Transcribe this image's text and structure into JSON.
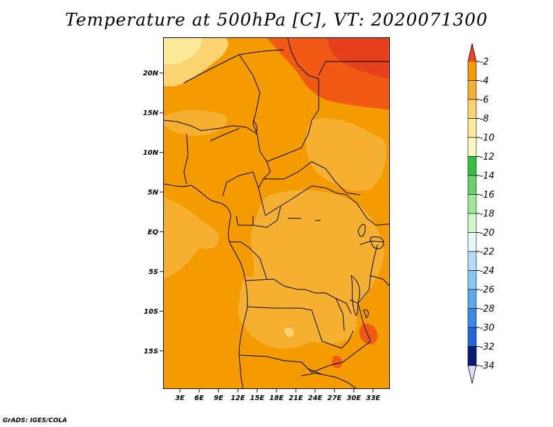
{
  "title": "Temperature at 500hPa [C], VT: 2020071300",
  "credit": "GrADS: IGES/COLA",
  "map": {
    "lat_ticks": [
      {
        "lat": 20,
        "label": "20N"
      },
      {
        "lat": 15,
        "label": "15N"
      },
      {
        "lat": 10,
        "label": "10N"
      },
      {
        "lat": 5,
        "label": "5N"
      },
      {
        "lat": 0,
        "label": "EQ"
      },
      {
        "lat": -5,
        "label": "5S"
      },
      {
        "lat": -10,
        "label": "10S"
      },
      {
        "lat": -15,
        "label": "15S"
      }
    ],
    "lon_ticks": [
      {
        "lon": 3,
        "label": "3E"
      },
      {
        "lon": 6,
        "label": "6E"
      },
      {
        "lon": 9,
        "label": "9E"
      },
      {
        "lon": 12,
        "label": "12E"
      },
      {
        "lon": 15,
        "label": "15E"
      },
      {
        "lon": 18,
        "label": "18E"
      },
      {
        "lon": 21,
        "label": "21E"
      },
      {
        "lon": 24,
        "label": "24E"
      },
      {
        "lon": 27,
        "label": "27E"
      },
      {
        "lon": 30,
        "label": "30E"
      },
      {
        "lon": 33,
        "label": "33E"
      }
    ]
  },
  "colorbar": {
    "levels": [
      {
        "label": "-2",
        "color": "#f05a14"
      },
      {
        "label": "-4",
        "color": "#f39b00"
      },
      {
        "label": "-6",
        "color": "#f5b032"
      },
      {
        "label": "-8",
        "color": "#fbd370"
      },
      {
        "label": "-10",
        "color": "#fde99a"
      },
      {
        "label": "-12",
        "color": "#fdf7c3"
      },
      {
        "label": "-14",
        "color": "#34c03c"
      },
      {
        "label": "-16",
        "color": "#66d46a"
      },
      {
        "label": "-18",
        "color": "#a0e89a"
      },
      {
        "label": "-20",
        "color": "#d0f6ce"
      },
      {
        "label": "-22",
        "color": "#e6f8fa"
      },
      {
        "label": "-24",
        "color": "#b4dcf8"
      },
      {
        "label": "-26",
        "color": "#88c6f4"
      },
      {
        "label": "-28",
        "color": "#5aaaf0"
      },
      {
        "label": "-30",
        "color": "#3c8ae8"
      },
      {
        "label": "-32",
        "color": "#1f68dc"
      },
      {
        "label": "-34",
        "color": "#1146b8"
      }
    ],
    "top_arrow_color": "#f0461e",
    "bottom_arrow_color": "#dcdcf8",
    "lowest_bin_color": "#0a1a78"
  }
}
